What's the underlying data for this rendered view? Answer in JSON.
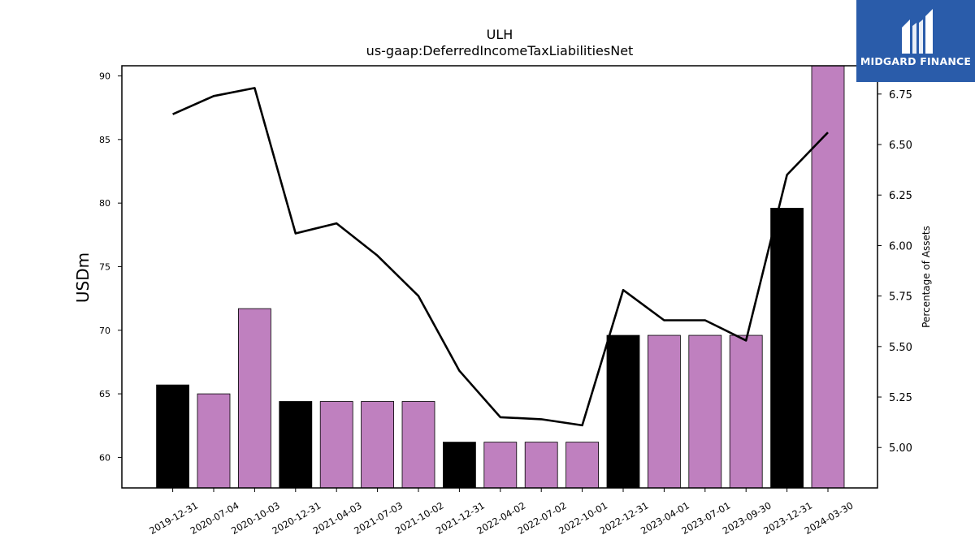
{
  "chart_data": {
    "type": "bar",
    "title": "ULH",
    "subtitle": "us-gaap:DeferredIncomeTaxLiabilitiesNet",
    "ylabel": "USDm",
    "ylabel_right": "Percentage of Assets",
    "categories": [
      "2019-12-31",
      "2020-07-04",
      "2020-10-03",
      "2020-12-31",
      "2021-04-03",
      "2021-07-03",
      "2021-10-02",
      "2021-12-31",
      "2022-04-02",
      "2022-07-02",
      "2022-10-01",
      "2022-12-31",
      "2023-04-01",
      "2023-07-01",
      "2023-09-30",
      "2023-12-31",
      "2024-03-30"
    ],
    "series": [
      {
        "type": "bar",
        "values": [
          65.7,
          65.0,
          71.7,
          64.4,
          64.4,
          64.4,
          64.4,
          61.2,
          61.2,
          61.2,
          61.2,
          69.6,
          69.6,
          69.6,
          69.6,
          79.6,
          90.9
        ],
        "colors": [
          "#000000",
          "#bf80bf",
          "#bf80bf",
          "#000000",
          "#bf80bf",
          "#bf80bf",
          "#bf80bf",
          "#000000",
          "#bf80bf",
          "#bf80bf",
          "#bf80bf",
          "#000000",
          "#bf80bf",
          "#bf80bf",
          "#bf80bf",
          "#000000",
          "#bf80bf"
        ]
      },
      {
        "type": "line",
        "axis": "right",
        "color": "#000000",
        "values": [
          6.65,
          6.74,
          6.78,
          6.06,
          6.11,
          5.95,
          5.75,
          5.38,
          5.15,
          5.14,
          5.11,
          5.78,
          5.63,
          5.63,
          5.53,
          6.35,
          6.56
        ]
      }
    ],
    "ylim": [
      57.6,
      90.8
    ],
    "ylim_right": [
      4.8,
      6.89
    ],
    "yticks": [
      60,
      65,
      70,
      75,
      80,
      85,
      90
    ],
    "yticks_right": [
      "5.00",
      "5.25",
      "5.50",
      "5.75",
      "6.00",
      "6.25",
      "6.50",
      "6.75"
    ],
    "grid": false,
    "legend": "none"
  },
  "logo": {
    "text": "MIDGARD FINANCE",
    "background": "#2a5caa"
  }
}
